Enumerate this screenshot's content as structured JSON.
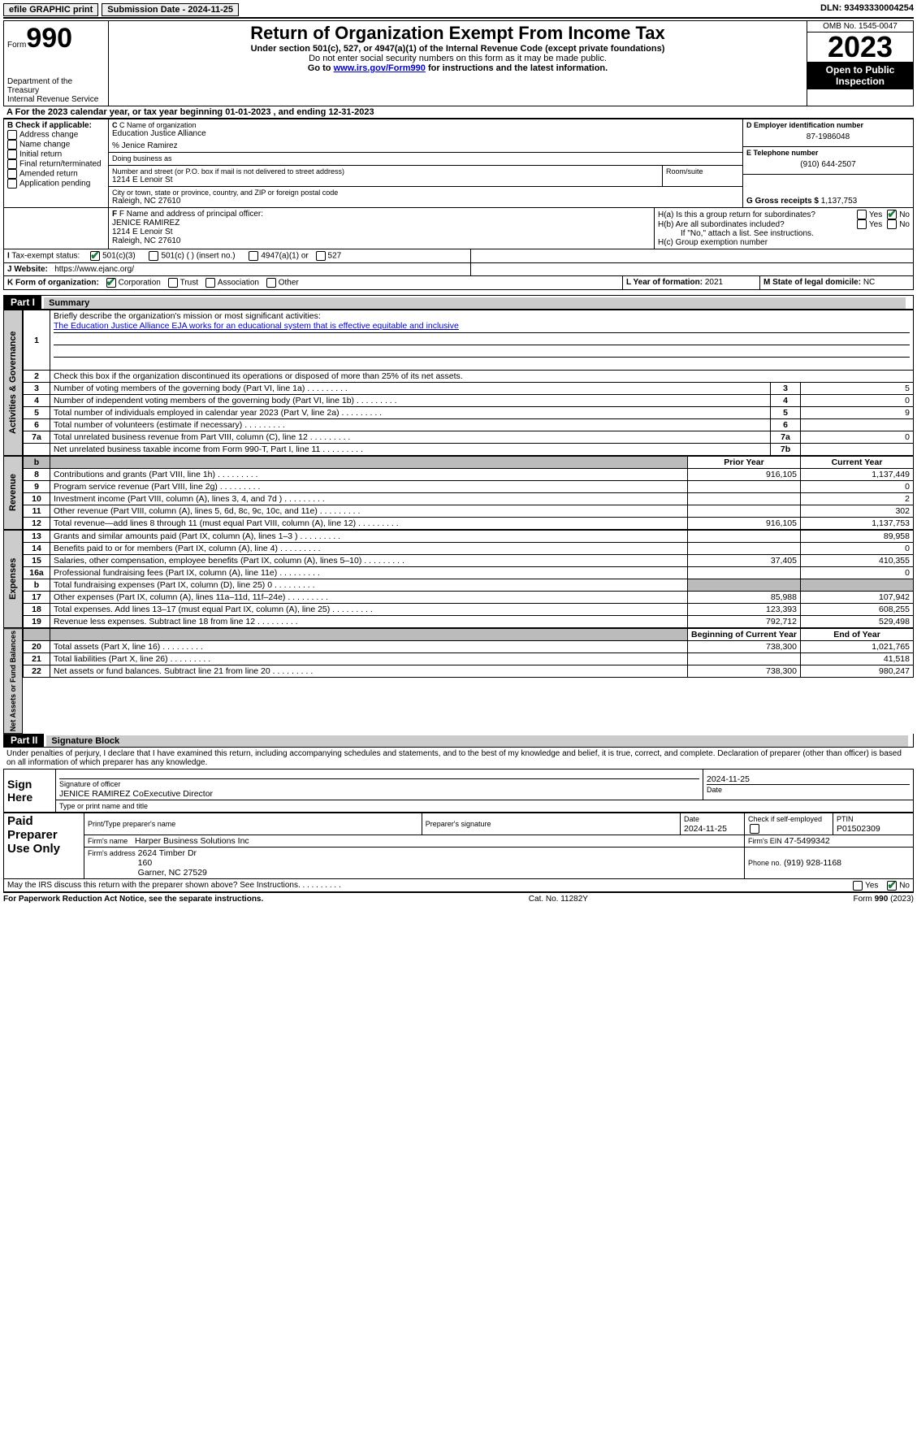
{
  "topbar": {
    "efile": "efile GRAPHIC print",
    "sub_label": "Submission Date - 2024-11-25",
    "dln": "DLN: 93493330004254"
  },
  "header": {
    "form_word": "Form",
    "form_num": "990",
    "dept": "Department of the Treasury",
    "irs": "Internal Revenue Service",
    "title": "Return of Organization Exempt From Income Tax",
    "sub1": "Under section 501(c), 527, or 4947(a)(1) of the Internal Revenue Code (except private foundations)",
    "sub2": "Do not enter social security numbers on this form as it may be made public.",
    "sub3_pre": "Go to ",
    "sub3_link": "www.irs.gov/Form990",
    "sub3_post": " for instructions and the latest information.",
    "omb": "OMB No. 1545-0047",
    "year": "2023",
    "open": "Open to Public Inspection"
  },
  "line_a": "For the 2023 calendar year, or tax year beginning 01-01-2023   , and ending 12-31-2023",
  "box_b": {
    "title": "B Check if applicable:",
    "items": [
      "Address change",
      "Name change",
      "Initial return",
      "Final return/terminated",
      "Amended return",
      "Application pending"
    ]
  },
  "box_c": {
    "label": "C Name of organization",
    "name": "Education Justice Alliance",
    "care_of": "% Jenice Ramirez",
    "dba_label": "Doing business as",
    "addr_label": "Number and street (or P.O. box if mail is not delivered to street address)",
    "room_label": "Room/suite",
    "addr": "1214 E Lenoir St",
    "city_label": "City or town, state or province, country, and ZIP or foreign postal code",
    "city": "Raleigh, NC  27610"
  },
  "box_d": {
    "label": "D Employer identification number",
    "value": "87-1986048"
  },
  "box_e": {
    "label": "E Telephone number",
    "value": "(910) 644-2507"
  },
  "box_g": {
    "label": "G Gross receipts $",
    "value": "1,137,753"
  },
  "box_f": {
    "label": "F  Name and address of principal officer:",
    "name": "JENICE RAMIREZ",
    "addr1": "1214 E Lenoir St",
    "addr2": "Raleigh, NC  27610"
  },
  "box_h": {
    "ha_label": "H(a)  Is this a group return for subordinates?",
    "hb_label": "H(b)  Are all subordinates included?",
    "hb_note": "If \"No,\" attach a list. See instructions.",
    "hc_label": "H(c)  Group exemption number",
    "yes": "Yes",
    "no": "No"
  },
  "box_i": {
    "label": "Tax-exempt status:",
    "o1": "501(c)(3)",
    "o2": "501(c) (  ) (insert no.)",
    "o3": "4947(a)(1) or",
    "o4": "527"
  },
  "box_j": {
    "label": "Website:",
    "value": "https://www.ejanc.org/"
  },
  "box_k": {
    "label": "K Form of organization:",
    "o1": "Corporation",
    "o2": "Trust",
    "o3": "Association",
    "o4": "Other"
  },
  "box_l": {
    "label": "L Year of formation:",
    "value": "2021"
  },
  "box_m": {
    "label": "M State of legal domicile:",
    "value": "NC"
  },
  "part1": {
    "hdr": "Part I",
    "title": "Summary"
  },
  "summary": {
    "s1_label": "Briefly describe the organization's mission or most significant activities:",
    "s1_text": "The Education Justice Alliance EJA works for an educational system that is effective equitable and inclusive",
    "s2": "Check this box      if the organization discontinued its operations or disposed of more than 25% of its net assets.",
    "rows_gov": [
      {
        "n": "3",
        "d": "Number of voting members of the governing body (Part VI, line 1a)",
        "ln": "3",
        "v": "5"
      },
      {
        "n": "4",
        "d": "Number of independent voting members of the governing body (Part VI, line 1b)",
        "ln": "4",
        "v": "0"
      },
      {
        "n": "5",
        "d": "Total number of individuals employed in calendar year 2023 (Part V, line 2a)",
        "ln": "5",
        "v": "9"
      },
      {
        "n": "6",
        "d": "Total number of volunteers (estimate if necessary)",
        "ln": "6",
        "v": ""
      },
      {
        "n": "7a",
        "d": "Total unrelated business revenue from Part VIII, column (C), line 12",
        "ln": "7a",
        "v": "0"
      },
      {
        "n": "",
        "d": "Net unrelated business taxable income from Form 990-T, Part I, line 11",
        "ln": "7b",
        "v": ""
      }
    ],
    "col_prior": "Prior Year",
    "col_current": "Current Year",
    "rows_rev": [
      {
        "n": "8",
        "d": "Contributions and grants (Part VIII, line 1h)",
        "p": "916,105",
        "c": "1,137,449"
      },
      {
        "n": "9",
        "d": "Program service revenue (Part VIII, line 2g)",
        "p": "",
        "c": "0"
      },
      {
        "n": "10",
        "d": "Investment income (Part VIII, column (A), lines 3, 4, and 7d )",
        "p": "",
        "c": "2"
      },
      {
        "n": "11",
        "d": "Other revenue (Part VIII, column (A), lines 5, 6d, 8c, 9c, 10c, and 11e)",
        "p": "",
        "c": "302"
      },
      {
        "n": "12",
        "d": "Total revenue—add lines 8 through 11 (must equal Part VIII, column (A), line 12)",
        "p": "916,105",
        "c": "1,137,753"
      }
    ],
    "rows_exp": [
      {
        "n": "13",
        "d": "Grants and similar amounts paid (Part IX, column (A), lines 1–3 )",
        "p": "",
        "c": "89,958"
      },
      {
        "n": "14",
        "d": "Benefits paid to or for members (Part IX, column (A), line 4)",
        "p": "",
        "c": "0"
      },
      {
        "n": "15",
        "d": "Salaries, other compensation, employee benefits (Part IX, column (A), lines 5–10)",
        "p": "37,405",
        "c": "410,355"
      },
      {
        "n": "16a",
        "d": "Professional fundraising fees (Part IX, column (A), line 11e)",
        "p": "",
        "c": "0"
      },
      {
        "n": "b",
        "d": "Total fundraising expenses (Part IX, column (D), line 25) 0",
        "p": "shaded",
        "c": "shaded"
      },
      {
        "n": "17",
        "d": "Other expenses (Part IX, column (A), lines 11a–11d, 11f–24e)",
        "p": "85,988",
        "c": "107,942"
      },
      {
        "n": "18",
        "d": "Total expenses. Add lines 13–17 (must equal Part IX, column (A), line 25)",
        "p": "123,393",
        "c": "608,255"
      },
      {
        "n": "19",
        "d": "Revenue less expenses. Subtract line 18 from line 12",
        "p": "792,712",
        "c": "529,498"
      }
    ],
    "col_begin": "Beginning of Current Year",
    "col_end": "End of Year",
    "rows_net": [
      {
        "n": "20",
        "d": "Total assets (Part X, line 16)",
        "p": "738,300",
        "c": "1,021,765"
      },
      {
        "n": "21",
        "d": "Total liabilities (Part X, line 26)",
        "p": "",
        "c": "41,518"
      },
      {
        "n": "22",
        "d": "Net assets or fund balances. Subtract line 21 from line 20",
        "p": "738,300",
        "c": "980,247"
      }
    ],
    "vlabels": {
      "gov": "Activities & Governance",
      "rev": "Revenue",
      "exp": "Expenses",
      "net": "Net Assets or Fund Balances"
    }
  },
  "part2": {
    "hdr": "Part II",
    "title": "Signature Block"
  },
  "sig": {
    "perjury": "Under penalties of perjury, I declare that I have examined this return, including accompanying schedules and statements, and to the best of my knowledge and belief, it is true, correct, and complete. Declaration of preparer (other than officer) is based on all information of which preparer has any knowledge.",
    "sign_here": "Sign Here",
    "sig_officer": "Signature of officer",
    "officer_name": "JENICE RAMIREZ CoExecutive Director",
    "type_name": "Type or print name and title",
    "date_label": "Date",
    "date1": "2024-11-25",
    "paid": "Paid Preparer Use Only",
    "prep_name_label": "Print/Type preparer's name",
    "prep_sig_label": "Preparer's signature",
    "date2_label": "Date",
    "date2": "2024-11-25",
    "check_self": "Check       if self-employed",
    "ptin_label": "PTIN",
    "ptin": "P01502309",
    "firm_name_label": "Firm's name",
    "firm_name": "Harper Business Solutions Inc",
    "firm_ein_label": "Firm's EIN",
    "firm_ein": "47-5499342",
    "firm_addr_label": "Firm's address",
    "firm_addr": "2624 Timber Dr\n160\nGarner, NC  27529",
    "phone_label": "Phone no.",
    "phone": "(919) 928-1168",
    "discuss": "May the IRS discuss this return with the preparer shown above? See Instructions."
  },
  "footer": {
    "left": "For Paperwork Reduction Act Notice, see the separate instructions.",
    "mid": "Cat. No. 11282Y",
    "right_pre": "Form ",
    "right_form": "990",
    "right_year": " (2023)"
  }
}
